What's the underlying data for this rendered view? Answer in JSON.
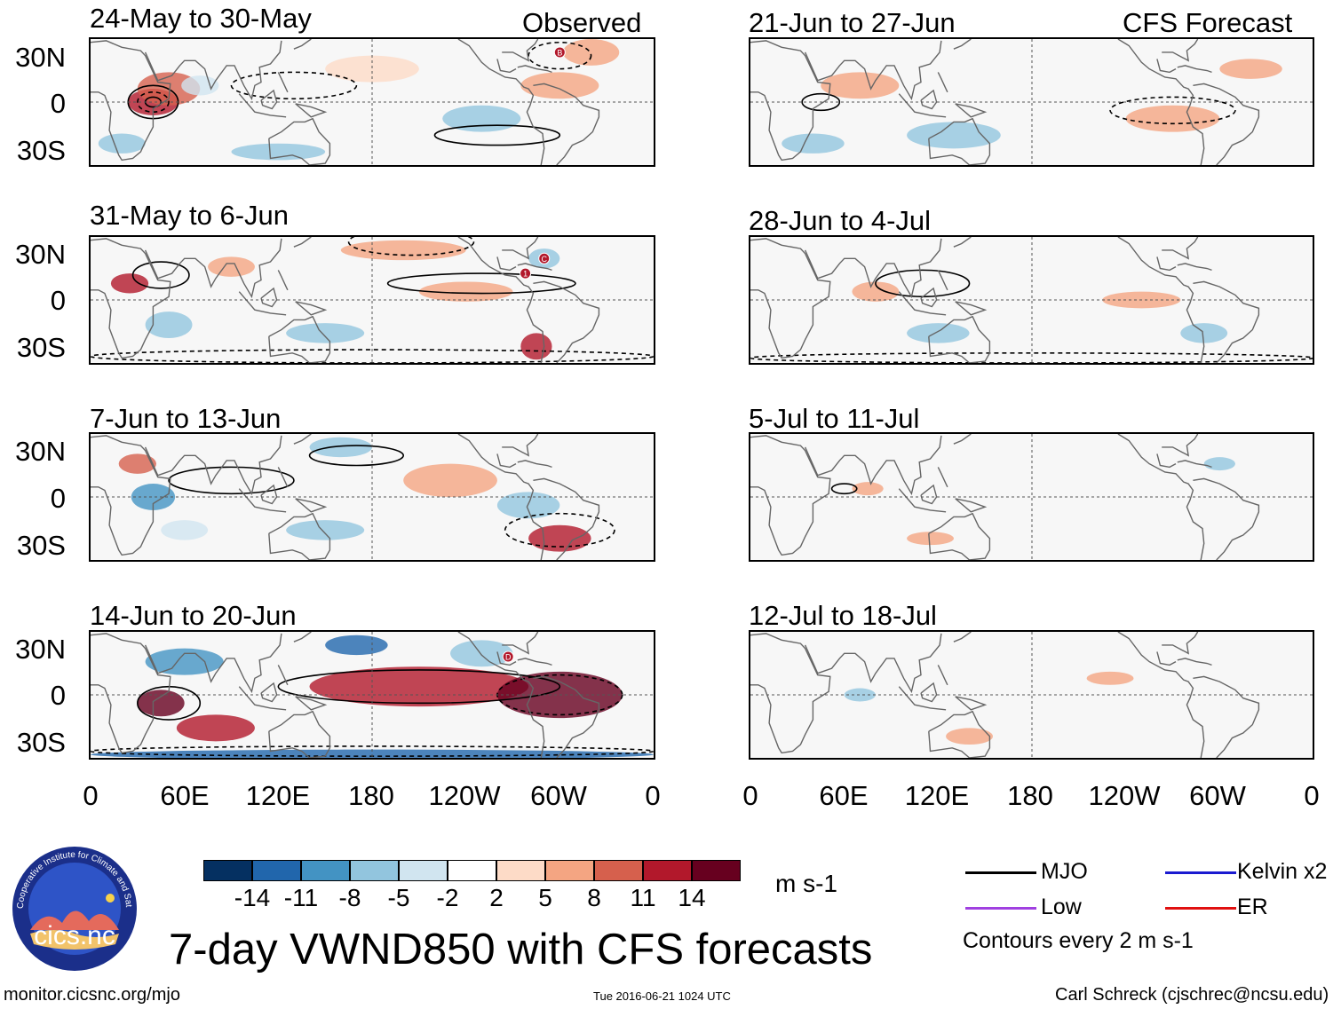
{
  "header": {
    "observed_label": "Observed",
    "forecast_label": "CFS Forecast"
  },
  "observed_panels": [
    {
      "title": "24-May to 30-May"
    },
    {
      "title": "31-May to 6-Jun"
    },
    {
      "title": "7-Jun to 13-Jun"
    },
    {
      "title": "14-Jun to 20-Jun"
    }
  ],
  "forecast_panels": [
    {
      "title": "21-Jun to 27-Jun"
    },
    {
      "title": "28-Jun to 4-Jul"
    },
    {
      "title": "5-Jul to 11-Jul"
    },
    {
      "title": "12-Jul to 18-Jul"
    }
  ],
  "axes": {
    "lat_labels": [
      "30N",
      "0",
      "30S"
    ],
    "lon_labels": [
      "0",
      "60E",
      "120E",
      "180",
      "120W",
      "60W",
      "0"
    ]
  },
  "storm_markers": [
    "B",
    "C",
    "1",
    "D"
  ],
  "colorbar": {
    "unit": "m s-1",
    "ticks": [
      "-14",
      "-11",
      "-8",
      "-5",
      "-2",
      "2",
      "5",
      "8",
      "11",
      "14"
    ],
    "colors": [
      "#053061",
      "#2166ac",
      "#4393c3",
      "#92c5de",
      "#d1e5f0",
      "#ffffff",
      "#fddbc7",
      "#f4a582",
      "#d6604d",
      "#b2182b",
      "#67001f"
    ]
  },
  "legend": {
    "items": [
      {
        "label": "MJO",
        "color": "#000000"
      },
      {
        "label": "Kelvin x2",
        "color": "#1a1ad0"
      },
      {
        "label": "Low",
        "color": "#a040e0"
      },
      {
        "label": "ER",
        "color": "#e01010"
      }
    ],
    "contour_note": "Contours every 2 m s-1"
  },
  "footer": {
    "main_title": "7-day VWND850 with CFS forecasts",
    "url": "monitor.cicsnc.org/mjo",
    "timestamp": "Tue 2016-06-21 1024 UTC",
    "author": "Carl Schreck (cjschrec@ncsu.edu)",
    "logo_text": "cics.nc",
    "logo_ring_text": "Cooperative Institute for Climate and Satellites"
  }
}
